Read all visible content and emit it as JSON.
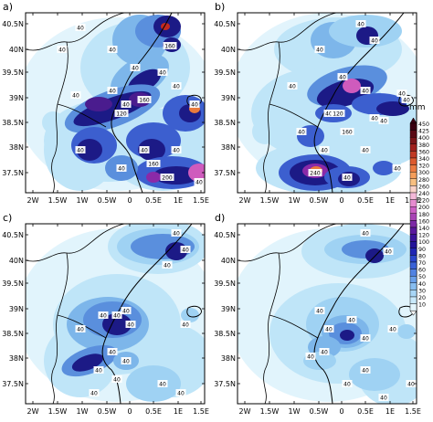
{
  "panels": [
    {
      "letter": "a)",
      "xticks": [
        "2W",
        "1.5W",
        "1W",
        "0.5W",
        "0",
        "0.5E",
        "1E",
        "1.5E"
      ],
      "yticks": [
        "40.5N",
        "40N",
        "39.5N",
        "39N",
        "38.5N",
        "38N",
        "37.5N"
      ]
    },
    {
      "letter": "b)",
      "xticks": [
        "2W",
        "1.5W",
        "1W",
        "0.5W",
        "0",
        "0.5E",
        "1E",
        "1.5E"
      ],
      "yticks": [
        "40.5N",
        "40N",
        "39.5N",
        "39N",
        "38.5N",
        "38N",
        "37.5N"
      ]
    },
    {
      "letter": "c)",
      "xticks": [
        "2W",
        "1.5W",
        "1W",
        "0.5W",
        "0",
        "0.5E",
        "1E",
        "1.5E"
      ],
      "yticks": [
        "40.5N",
        "40N",
        "39.5N",
        "39N",
        "38.5N",
        "38N",
        "37.5N"
      ]
    },
    {
      "letter": "d)",
      "xticks": [
        "2W",
        "1.5W",
        "1W",
        "0.5W",
        "0",
        "0.5E",
        "1E",
        "1.5E"
      ],
      "yticks": [
        "40.5N",
        "40N",
        "39.5N",
        "39N",
        "38.5N",
        "38N",
        "37.5N"
      ]
    }
  ],
  "colorbar": {
    "unit": "mm",
    "levels": [
      "450",
      "425",
      "400",
      "380",
      "360",
      "340",
      "320",
      "300",
      "280",
      "260",
      "240",
      "220",
      "200",
      "180",
      "160",
      "140",
      "120",
      "100",
      "90",
      "80",
      "70",
      "60",
      "50",
      "40",
      "30",
      "20",
      "10"
    ],
    "colors": [
      "#3a0010",
      "#5a0a14",
      "#7a1518",
      "#a0201c",
      "#c03a24",
      "#dc5a2e",
      "#ec7a40",
      "#f59e5a",
      "#f8bf80",
      "#fad2c8",
      "#f4b8d8",
      "#e68cd0",
      "#cc60c4",
      "#a843b4",
      "#7d2aa6",
      "#5a1a9e",
      "#3a149a",
      "#24149a",
      "#2026b4",
      "#2a46cc",
      "#3a62d8",
      "#5283e2",
      "#6aa0ea",
      "#88bdf0",
      "#a8d6f6",
      "#c8e9fb",
      "#e4f6fd"
    ]
  },
  "contour_labels": {
    "a": [
      "40",
      "40",
      "40",
      "160",
      "40",
      "40",
      "40",
      "40",
      "40",
      "40",
      "120",
      "160",
      "40",
      "40",
      "40",
      "40",
      "160",
      "40",
      "200",
      "40"
    ],
    "b": [
      "40",
      "40",
      "40",
      "40",
      "40",
      "40",
      "40",
      "40",
      "120",
      "40",
      "40",
      "40",
      "160",
      "40",
      "40",
      "40",
      "240",
      "40",
      "40"
    ],
    "c": [
      "40",
      "40",
      "40",
      "40",
      "40",
      "40",
      "40",
      "40",
      "40",
      "40",
      "40",
      "40",
      "40",
      "40",
      "40",
      "40"
    ],
    "d": [
      "40",
      "40",
      "40",
      "40",
      "40",
      "40",
      "40",
      "40",
      "40",
      "40",
      "40",
      "40",
      "40"
    ]
  }
}
